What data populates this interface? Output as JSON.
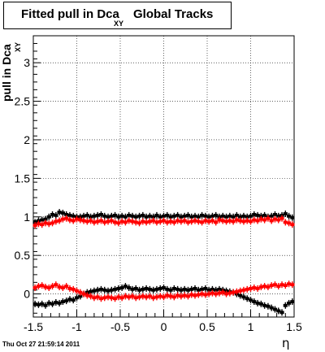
{
  "title": {
    "main": "Fitted pull in Dca",
    "subscript": "XY",
    "tail": "Global Tracks"
  },
  "y_axis_label": {
    "main": "pull in Dca",
    "subscript": "XY"
  },
  "x_axis_label": "η",
  "timestamp": "Thu Oct 27 21:59:14 2011",
  "colors": {
    "black_series": "#000000",
    "red_series": "#ff0000",
    "grid": "#000000",
    "background": "#ffffff"
  },
  "chart_data": {
    "type": "scatter",
    "xlim": [
      -1.5,
      1.5
    ],
    "ylim": [
      -0.3,
      3.35
    ],
    "grid": true,
    "x_ticks": [
      -1.5,
      -1,
      -0.5,
      0,
      0.5,
      1,
      1.5
    ],
    "x_tick_labels": [
      "-1.5",
      "-1",
      "-0.5",
      "0",
      "0.5",
      "1",
      "1.5"
    ],
    "y_ticks": [
      0,
      0.5,
      1,
      1.5,
      2,
      2.5,
      3
    ],
    "y_tick_labels": [
      "0",
      "0.5",
      "1",
      "1.5",
      "2",
      "2.5",
      "3"
    ],
    "series": [
      {
        "color": "#000000",
        "x": [
          -1.48,
          -1.44,
          -1.4,
          -1.36,
          -1.32,
          -1.28,
          -1.24,
          -1.2,
          -1.16,
          -1.12,
          -1.08,
          -1.04,
          -1.0,
          -0.96,
          -0.92,
          -0.88,
          -0.84,
          -0.8,
          -0.76,
          -0.72,
          -0.68,
          -0.64,
          -0.6,
          -0.56,
          -0.52,
          -0.48,
          -0.44,
          -0.4,
          -0.36,
          -0.32,
          -0.28,
          -0.24,
          -0.2,
          -0.16,
          -0.12,
          -0.08,
          -0.04,
          0.0,
          0.04,
          0.08,
          0.12,
          0.16,
          0.2,
          0.24,
          0.28,
          0.32,
          0.36,
          0.4,
          0.44,
          0.48,
          0.52,
          0.56,
          0.6,
          0.64,
          0.68,
          0.72,
          0.76,
          0.8,
          0.84,
          0.88,
          0.92,
          0.96,
          1.0,
          1.04,
          1.08,
          1.12,
          1.16,
          1.2,
          1.24,
          1.28,
          1.32,
          1.36,
          1.4,
          1.44,
          1.48
        ],
        "y": [
          0.93,
          0.95,
          0.96,
          0.97,
          1.0,
          1.03,
          1.02,
          1.06,
          1.05,
          1.03,
          1.02,
          1.01,
          1.0,
          1.0,
          1.01,
          1.02,
          1.0,
          1.01,
          1.02,
          1.03,
          1.01,
          1.0,
          1.01,
          1.02,
          1.0,
          1.01,
          1.0,
          1.02,
          1.01,
          1.0,
          1.01,
          1.02,
          1.0,
          1.01,
          1.0,
          1.02,
          1.0,
          1.01,
          1.02,
          1.0,
          1.01,
          1.02,
          1.0,
          1.01,
          1.02,
          1.0,
          1.01,
          1.0,
          1.02,
          1.01,
          1.0,
          1.01,
          1.02,
          1.0,
          1.01,
          1.0,
          1.01,
          1.0,
          1.02,
          1.0,
          1.01,
          1.0,
          1.01,
          1.03,
          1.02,
          1.01,
          1.02,
          1.0,
          1.01,
          1.03,
          1.01,
          1.02,
          1.04,
          1.01,
          0.99
        ]
      },
      {
        "color": "#ff0000",
        "x": [
          -1.48,
          -1.44,
          -1.4,
          -1.36,
          -1.32,
          -1.28,
          -1.24,
          -1.2,
          -1.16,
          -1.12,
          -1.08,
          -1.04,
          -1.0,
          -0.96,
          -0.92,
          -0.88,
          -0.84,
          -0.8,
          -0.76,
          -0.72,
          -0.68,
          -0.64,
          -0.6,
          -0.56,
          -0.52,
          -0.48,
          -0.44,
          -0.4,
          -0.36,
          -0.32,
          -0.28,
          -0.24,
          -0.2,
          -0.16,
          -0.12,
          -0.08,
          -0.04,
          0.0,
          0.04,
          0.08,
          0.12,
          0.16,
          0.2,
          0.24,
          0.28,
          0.32,
          0.36,
          0.4,
          0.44,
          0.48,
          0.52,
          0.56,
          0.6,
          0.64,
          0.68,
          0.72,
          0.76,
          0.8,
          0.84,
          0.88,
          0.92,
          0.96,
          1.0,
          1.04,
          1.08,
          1.12,
          1.16,
          1.2,
          1.24,
          1.28,
          1.32,
          1.36,
          1.4,
          1.44,
          1.48
        ],
        "y": [
          0.89,
          0.91,
          0.9,
          0.92,
          0.91,
          0.92,
          0.94,
          0.95,
          0.97,
          0.98,
          0.96,
          0.95,
          0.97,
          0.96,
          0.95,
          0.94,
          0.95,
          0.93,
          0.94,
          0.95,
          0.93,
          0.94,
          0.95,
          0.93,
          0.92,
          0.94,
          0.93,
          0.95,
          0.94,
          0.93,
          0.92,
          0.94,
          0.93,
          0.94,
          0.95,
          0.93,
          0.94,
          0.95,
          0.93,
          0.94,
          0.93,
          0.95,
          0.94,
          0.95,
          0.93,
          0.94,
          0.95,
          0.94,
          0.93,
          0.95,
          0.94,
          0.95,
          0.93,
          0.96,
          0.95,
          0.94,
          0.95,
          0.94,
          0.96,
          0.95,
          0.94,
          0.95,
          0.94,
          0.96,
          0.95,
          0.97,
          0.96,
          0.98,
          0.95,
          0.97,
          0.96,
          0.98,
          0.93,
          0.92,
          0.9
        ]
      },
      {
        "color": "#000000",
        "x": [
          -1.48,
          -1.44,
          -1.4,
          -1.36,
          -1.32,
          -1.28,
          -1.24,
          -1.2,
          -1.16,
          -1.12,
          -1.08,
          -1.04,
          -1.0,
          -0.96,
          -0.92,
          -0.88,
          -0.84,
          -0.8,
          -0.76,
          -0.72,
          -0.68,
          -0.64,
          -0.6,
          -0.56,
          -0.52,
          -0.48,
          -0.44,
          -0.4,
          -0.36,
          -0.32,
          -0.28,
          -0.24,
          -0.2,
          -0.16,
          -0.12,
          -0.08,
          -0.04,
          0.0,
          0.04,
          0.08,
          0.12,
          0.16,
          0.2,
          0.24,
          0.28,
          0.32,
          0.36,
          0.4,
          0.44,
          0.48,
          0.52,
          0.56,
          0.6,
          0.64,
          0.68,
          0.72,
          0.76,
          0.8,
          0.84,
          0.88,
          0.92,
          0.96,
          1.0,
          1.04,
          1.08,
          1.12,
          1.16,
          1.2,
          1.24,
          1.28,
          1.32,
          1.36,
          1.4,
          1.44,
          1.48
        ],
        "y": [
          -0.13,
          -0.14,
          -0.13,
          -0.15,
          -0.12,
          -0.13,
          -0.11,
          -0.12,
          -0.1,
          -0.09,
          -0.07,
          -0.08,
          -0.05,
          -0.03,
          0.0,
          0.02,
          0.03,
          0.04,
          0.05,
          0.06,
          0.05,
          0.04,
          0.05,
          0.06,
          0.07,
          0.08,
          0.1,
          0.08,
          0.06,
          0.07,
          0.05,
          0.06,
          0.07,
          0.06,
          0.05,
          0.06,
          0.07,
          0.08,
          0.06,
          0.05,
          0.07,
          0.06,
          0.05,
          0.06,
          0.05,
          0.06,
          0.07,
          0.05,
          0.06,
          0.07,
          0.05,
          0.06,
          0.05,
          0.06,
          0.05,
          0.04,
          0.03,
          0.02,
          0.0,
          -0.02,
          -0.04,
          -0.06,
          -0.08,
          -0.1,
          -0.12,
          -0.13,
          -0.15,
          -0.16,
          -0.18,
          -0.2,
          -0.22,
          -0.24,
          -0.15,
          -0.12,
          -0.1
        ]
      },
      {
        "color": "#ff0000",
        "x": [
          -1.48,
          -1.44,
          -1.4,
          -1.36,
          -1.32,
          -1.28,
          -1.24,
          -1.2,
          -1.16,
          -1.12,
          -1.08,
          -1.04,
          -1.0,
          -0.96,
          -0.92,
          -0.88,
          -0.84,
          -0.8,
          -0.76,
          -0.72,
          -0.68,
          -0.64,
          -0.6,
          -0.56,
          -0.52,
          -0.48,
          -0.44,
          -0.4,
          -0.36,
          -0.32,
          -0.28,
          -0.24,
          -0.2,
          -0.16,
          -0.12,
          -0.08,
          -0.04,
          0.0,
          0.04,
          0.08,
          0.12,
          0.16,
          0.2,
          0.24,
          0.28,
          0.32,
          0.36,
          0.4,
          0.44,
          0.48,
          0.52,
          0.56,
          0.6,
          0.64,
          0.68,
          0.72,
          0.76,
          0.8,
          0.84,
          0.88,
          0.92,
          0.96,
          1.0,
          1.04,
          1.08,
          1.12,
          1.16,
          1.2,
          1.24,
          1.28,
          1.32,
          1.36,
          1.4,
          1.44,
          1.48
        ],
        "y": [
          0.08,
          0.1,
          0.11,
          0.09,
          0.08,
          0.1,
          0.12,
          0.09,
          0.08,
          0.1,
          0.07,
          0.06,
          0.04,
          0.02,
          0.0,
          -0.02,
          -0.03,
          -0.05,
          -0.04,
          -0.06,
          -0.05,
          -0.04,
          -0.05,
          -0.06,
          -0.04,
          -0.05,
          -0.03,
          -0.04,
          -0.03,
          -0.05,
          -0.04,
          -0.03,
          -0.04,
          -0.03,
          -0.05,
          -0.04,
          -0.03,
          -0.04,
          -0.02,
          -0.03,
          -0.04,
          -0.02,
          -0.03,
          -0.02,
          -0.03,
          -0.01,
          -0.02,
          -0.01,
          0.0,
          -0.01,
          0.0,
          0.01,
          0.0,
          0.01,
          0.02,
          0.0,
          0.01,
          0.02,
          0.03,
          0.04,
          0.05,
          0.06,
          0.07,
          0.08,
          0.07,
          0.09,
          0.1,
          0.09,
          0.11,
          0.12,
          0.1,
          0.12,
          0.11,
          0.13,
          0.12
        ]
      }
    ]
  }
}
